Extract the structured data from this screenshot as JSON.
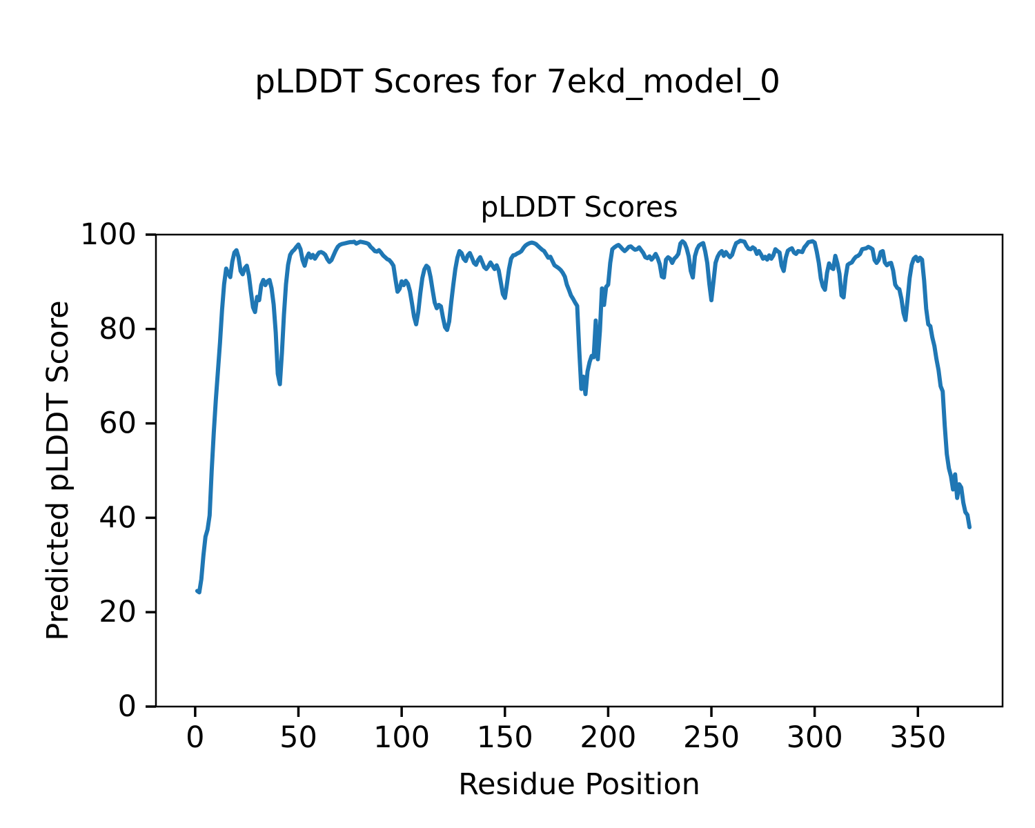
{
  "figure": {
    "suptitle": "pLDDT Scores for 7ekd_model_0",
    "background_color": "#ffffff",
    "text_color": "#000000"
  },
  "chart_data": {
    "type": "line",
    "title": "pLDDT Scores",
    "xlabel": "Residue Position",
    "ylabel": "Predicted pLDDT Score",
    "xlim": [
      -19,
      391
    ],
    "ylim": [
      0,
      100
    ],
    "xticks": [
      0,
      50,
      100,
      150,
      200,
      250,
      300,
      350
    ],
    "yticks": [
      0,
      20,
      40,
      60,
      80,
      100
    ],
    "grid": false,
    "legend_position": "none",
    "line_color": "#1f77b4",
    "frame_color": "#000000",
    "series": [
      {
        "name": "pLDDT",
        "x_start": 1,
        "x_step": 1,
        "values": [
          24.5,
          24.2,
          27.0,
          32.0,
          36.0,
          37.5,
          40.5,
          50.0,
          58.0,
          65.0,
          71.0,
          77.0,
          84.0,
          89.5,
          92.8,
          91.8,
          91.0,
          94.3,
          96.2,
          96.7,
          95.2,
          92.3,
          91.6,
          92.9,
          93.4,
          91.4,
          87.8,
          84.6,
          83.6,
          86.8,
          86.1,
          89.3,
          90.4,
          89.3,
          90.1,
          90.4,
          88.6,
          85.2,
          79.3,
          70.5,
          68.3,
          75.0,
          83.0,
          89.5,
          93.6,
          95.7,
          96.4,
          96.8,
          97.4,
          97.9,
          96.9,
          94.6,
          93.4,
          95.1,
          96.0,
          95.1,
          95.7,
          94.9,
          95.6,
          96.2,
          96.3,
          96.1,
          95.7,
          94.8,
          94.2,
          94.6,
          95.6,
          96.6,
          97.4,
          97.8,
          98.0,
          98.1,
          98.2,
          98.3,
          98.4,
          98.4,
          98.5,
          98.1,
          98.3,
          98.5,
          98.4,
          98.3,
          98.2,
          98.0,
          97.4,
          97.0,
          96.5,
          96.4,
          96.7,
          96.2,
          95.6,
          95.2,
          94.8,
          94.6,
          94.1,
          93.4,
          90.5,
          87.9,
          88.5,
          90.1,
          89.3,
          90.2,
          89.6,
          88.0,
          85.4,
          82.6,
          81.0,
          83.5,
          87.5,
          90.8,
          92.6,
          93.4,
          93.0,
          91.0,
          88.2,
          85.6,
          84.4,
          85.1,
          84.8,
          82.4,
          80.4,
          79.8,
          81.6,
          85.7,
          89.3,
          92.7,
          95.1,
          96.5,
          96.1,
          94.9,
          94.4,
          95.6,
          96.1,
          95.1,
          94.0,
          93.6,
          94.6,
          95.2,
          94.2,
          93.1,
          92.7,
          93.3,
          94.1,
          93.4,
          92.7,
          93.5,
          92.4,
          89.9,
          87.4,
          86.6,
          89.6,
          92.7,
          94.9,
          95.6,
          95.7,
          96.0,
          96.2,
          96.5,
          97.2,
          97.7,
          98.0,
          98.2,
          98.3,
          98.2,
          98.0,
          97.6,
          97.2,
          96.8,
          96.5,
          95.8,
          95.1,
          95.3,
          94.4,
          93.5,
          93.2,
          92.9,
          92.5,
          91.9,
          91.1,
          89.4,
          88.3,
          87.1,
          86.4,
          85.6,
          84.9,
          75.5,
          67.3,
          69.9,
          66.2,
          71.0,
          73.0,
          74.3,
          74.0,
          81.8,
          73.6,
          79.5,
          88.6,
          85.1,
          88.9,
          89.4,
          94.0,
          96.9,
          97.3,
          97.6,
          97.8,
          97.4,
          96.9,
          96.5,
          96.9,
          97.4,
          97.5,
          97.1,
          96.8,
          96.9,
          97.3,
          96.7,
          96.1,
          95.2,
          95.0,
          95.4,
          94.7,
          95.2,
          95.9,
          95.0,
          93.7,
          91.1,
          90.9,
          94.7,
          95.2,
          94.9,
          94.0,
          94.9,
          95.3,
          95.9,
          98.1,
          98.6,
          98.2,
          97.1,
          95.4,
          92.3,
          90.9,
          95.4,
          96.9,
          97.7,
          98.0,
          98.2,
          96.4,
          94.0,
          89.6,
          86.1,
          90.0,
          94.0,
          95.3,
          96.1,
          96.5,
          95.5,
          96.3,
          95.7,
          95.2,
          95.7,
          97.1,
          98.2,
          98.4,
          98.7,
          98.6,
          98.5,
          97.6,
          97.0,
          96.9,
          97.3,
          97.0,
          95.9,
          96.5,
          95.8,
          94.9,
          95.3,
          94.7,
          95.6,
          94.9,
          95.6,
          96.9,
          96.5,
          96.2,
          93.4,
          92.3,
          95.1,
          96.6,
          96.9,
          97.1,
          96.2,
          95.9,
          96.5,
          96.4,
          96.3,
          97.3,
          97.8,
          98.4,
          98.5,
          98.6,
          98.3,
          96.4,
          94.0,
          90.7,
          89.0,
          88.3,
          91.9,
          93.9,
          93.0,
          92.7,
          95.5,
          93.9,
          91.7,
          87.1,
          86.7,
          91.0,
          93.6,
          93.9,
          94.1,
          94.8,
          95.3,
          95.5,
          95.9,
          96.9,
          97.0,
          97.1,
          97.4,
          97.2,
          96.9,
          94.6,
          94.0,
          94.6,
          96.3,
          96.5,
          94.1,
          93.5,
          93.9,
          94.0,
          92.4,
          89.4,
          88.7,
          88.4,
          86.4,
          83.4,
          81.9,
          86.2,
          90.8,
          93.6,
          94.9,
          95.3,
          94.4,
          95.1,
          94.7,
          90.3,
          84.3,
          81.0,
          80.6,
          78.2,
          76.4,
          73.6,
          71.3,
          67.9,
          66.8,
          59.5,
          53.5,
          50.5,
          48.8,
          46.0,
          49.2,
          44.2,
          47.1,
          46.4,
          43.2,
          41.2,
          40.6,
          38.0
        ]
      }
    ]
  }
}
